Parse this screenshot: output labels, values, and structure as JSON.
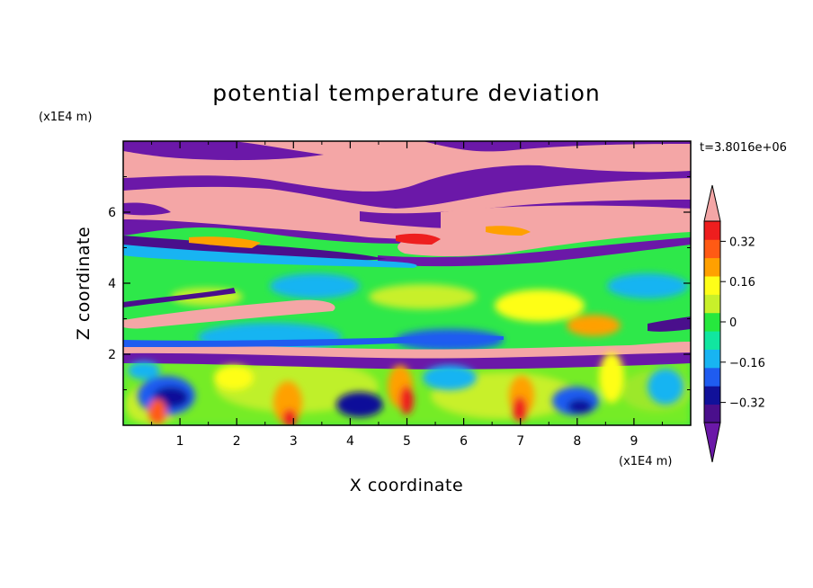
{
  "chart_data": {
    "type": "heatmap",
    "title": "potential temperature deviation",
    "xlabel": "X coordinate",
    "ylabel": "Z coordinate",
    "x_unit": "(x1E4 m)",
    "y_unit": "(x1E4 m)",
    "time_label": "t=3.8016e+06",
    "xlim": [
      0,
      10
    ],
    "ylim": [
      0,
      8
    ],
    "x_ticks": [
      "1",
      "2",
      "3",
      "4",
      "5",
      "6",
      "7",
      "8",
      "9"
    ],
    "y_ticks": [
      "2",
      "4",
      "6"
    ],
    "colorbar": {
      "levels": [
        -0.4,
        -0.32,
        -0.24,
        -0.16,
        -0.08,
        0,
        0.08,
        0.16,
        0.24,
        0.32,
        0.4
      ],
      "tick_labels": [
        "0.32",
        "0.16",
        "0",
        "−0.16",
        "−0.32"
      ],
      "tick_values": [
        0.32,
        0.16,
        0,
        -0.16,
        -0.32
      ],
      "band_colors": [
        "#4a0f8c",
        "#111199",
        "#1f5cf0",
        "#18b4f2",
        "#11e6a0",
        "#26e83e",
        "#c8f02a",
        "#fefe18",
        "#ffa000",
        "#ff5a14",
        "#ee1e1e"
      ],
      "under_color": "#6b18a8",
      "over_color": "#f4a6a6",
      "extend": "both"
    },
    "field_features": [
      {
        "region": "upper layer",
        "x": [
          0,
          10
        ],
        "z": [
          6.8,
          8.0
        ],
        "value": "alternating >0.4 / <-0.4 bands"
      },
      {
        "region": "middle band",
        "x": [
          0,
          10
        ],
        "z": [
          5.2,
          6.8
        ],
        "value": ">0.4 tilted band"
      },
      {
        "region": "mid layer",
        "x": [
          0,
          10
        ],
        "z": [
          2.2,
          5.2
        ],
        "value": "-0.16 to 0.16 with small eddies"
      },
      {
        "region": "low layer",
        "x": [
          0,
          10
        ],
        "z": [
          0,
          2.0
        ],
        "value": "warm plumes near x=0.6, 3, 4.6, 6.9, 8.2; cold cells near x=1.1, 4, 7.8"
      }
    ]
  }
}
